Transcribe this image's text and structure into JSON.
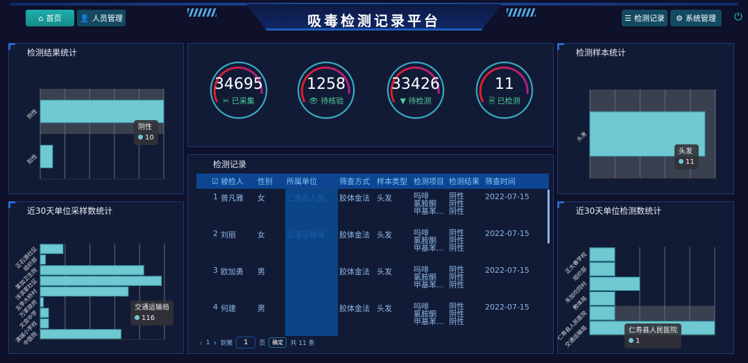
{
  "header": {
    "title": "吸毒检测记录平台",
    "nav_left": [
      {
        "label": "首页",
        "icon": "home-icon",
        "active": true
      },
      {
        "label": "人员管理",
        "icon": "user-icon"
      }
    ],
    "nav_right": [
      {
        "label": "检测记录",
        "icon": "list-icon"
      },
      {
        "label": "系统管理",
        "icon": "gears-icon"
      }
    ],
    "power_icon": "power-icon"
  },
  "colors": {
    "bar": "#6fc8d2",
    "accent": "#1faeae",
    "table_header": "#0e4592",
    "gauge_arc": "#e0202a"
  },
  "stats": [
    {
      "value": "34695",
      "label": "已采集",
      "icon": "✂"
    },
    {
      "value": "1258",
      "label": "待核验",
      "icon": "👁"
    },
    {
      "value": "33426",
      "label": "待检测",
      "icon": "▼"
    },
    {
      "value": "11",
      "label": "已检测",
      "icon": "🗎"
    }
  ],
  "records": {
    "title": "检测记录",
    "columns": [
      "被检人",
      "性别",
      "所属单位",
      "筛查方式",
      "样本类型",
      "检测项目",
      "检测结果",
      "筛查时间"
    ],
    "rows": [
      {
        "no": "1",
        "name": "曾凡雅",
        "gender": "女",
        "unit": "仁寿县人民...",
        "method": "胶体金法",
        "sample": "头发",
        "items": "吗啡\n氯胺酮\n甲基苯...",
        "results": "阴性\n阴性\n阴性",
        "date": "2022-07-15"
      },
      {
        "no": "2",
        "name": "刘丽",
        "gender": "女",
        "unit": "交通运输局",
        "method": "胶体金法",
        "sample": "头发",
        "items": "吗啡\n氯胺酮\n甲基苯...",
        "results": "阴性\n阴性\n阴性",
        "date": "2022-07-15"
      },
      {
        "no": "3",
        "name": "欧加勇",
        "gender": "男",
        "unit": "",
        "method": "胶体金法",
        "sample": "头发",
        "items": "吗啡\n氯胺酮\n甲基苯...",
        "results": "阴性\n阴性\n阴性",
        "date": "2022-07-15"
      },
      {
        "no": "4",
        "name": "何建",
        "gender": "男",
        "unit": "",
        "method": "胶体金法",
        "sample": "头发",
        "items": "吗啡\n氯胺酮\n甲基苯...",
        "results": "阴性\n阴性\n阴性",
        "date": "2022-07-15"
      }
    ],
    "pager": {
      "current": "1",
      "goto_label": "到第",
      "page_value": "1",
      "page_unit": "页",
      "confirm": "确定",
      "total": "共 11 条"
    }
  },
  "chart_data": [
    {
      "id": "result",
      "type": "bar",
      "orientation": "horizontal",
      "title": "检测结果统计",
      "categories": [
        "阴性",
        "阳性"
      ],
      "values": [
        10,
        1
      ],
      "xlim": [
        0,
        10
      ],
      "grid": true,
      "tooltip": {
        "name": "阴性",
        "value": "10"
      }
    },
    {
      "id": "sample",
      "type": "bar",
      "orientation": "horizontal",
      "title": "检测样本统计",
      "categories": [
        "头发"
      ],
      "values": [
        11
      ],
      "xlim": [
        0,
        12
      ],
      "grid": true,
      "tooltip": {
        "name": "头发",
        "value": "11"
      }
    },
    {
      "id": "unitSample",
      "type": "bar",
      "orientation": "horizontal",
      "title": "近30天单位采样数统计",
      "categories": [
        "正石源社区",
        "组织部",
        "某加卫生院",
        "洋滨家社区",
        "五李大桥村",
        "万家政府",
        "文宫中学",
        "满城小学校",
        "中医院"
      ],
      "values": [
        22,
        5,
        100,
        117,
        85,
        3,
        8,
        8,
        78
      ],
      "xlim": [
        0,
        120
      ],
      "grid": true,
      "tooltip": {
        "name": "交通运输局",
        "value": "116"
      }
    },
    {
      "id": "unitTest",
      "type": "bar",
      "orientation": "horizontal",
      "title": "近30天单位检测数统计",
      "categories": [
        "正大春学校",
        "组织部",
        "禾加坎同村",
        "教体局",
        "仁寿县人民医院",
        "交通运输局"
      ],
      "values": [
        1,
        1,
        2,
        1,
        1,
        5
      ],
      "xlim": [
        0,
        5
      ],
      "grid": true,
      "tooltip": {
        "name": "仁寿县人民医院",
        "value": "1"
      }
    }
  ]
}
